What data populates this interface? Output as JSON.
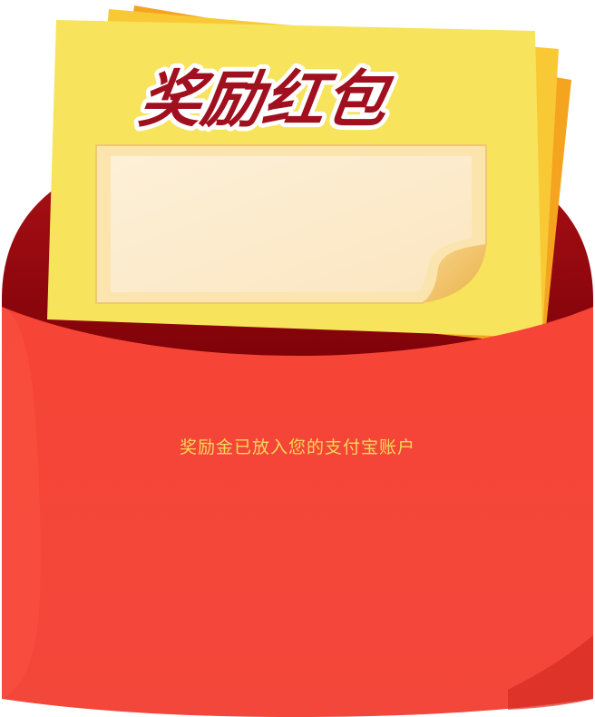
{
  "card": {
    "title": "奖励红包",
    "title_color": "#a0101f"
  },
  "envelope": {
    "message": "奖励金已放入您的支付宝账户",
    "message_color": "#f5d65a",
    "body_color": "#f54437",
    "back_color": "#9c0a0f"
  },
  "paper": {
    "front_color": "#f7e35c",
    "back_color": "#f5a623",
    "note_color": "#fcebc8"
  }
}
